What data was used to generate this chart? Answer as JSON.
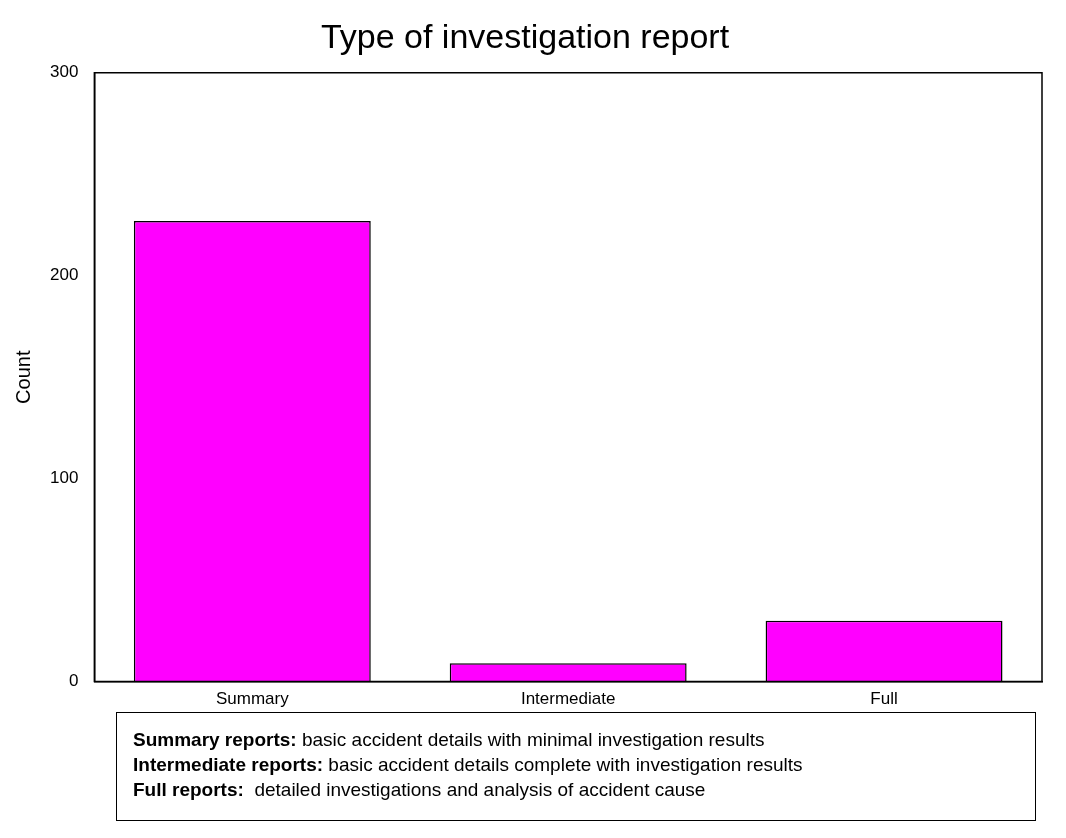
{
  "chart_data": {
    "type": "bar",
    "title": "Type of investigation report",
    "ylabel": "Count",
    "categories": [
      "Summary",
      "Intermediate",
      "Full"
    ],
    "values": [
      227,
      9,
      30
    ],
    "color": "#ff00ff",
    "ylim": [
      0,
      300
    ],
    "yticks": [
      0,
      100,
      200,
      300
    ],
    "grid": false,
    "legend": false,
    "annotations": [
      "Summary reports: basic accident details with minimal investigation results",
      "Intermediate reports: basic accident details complete with investigation results",
      "Full reports:  detailed investigations and analysis of accident cause"
    ]
  }
}
